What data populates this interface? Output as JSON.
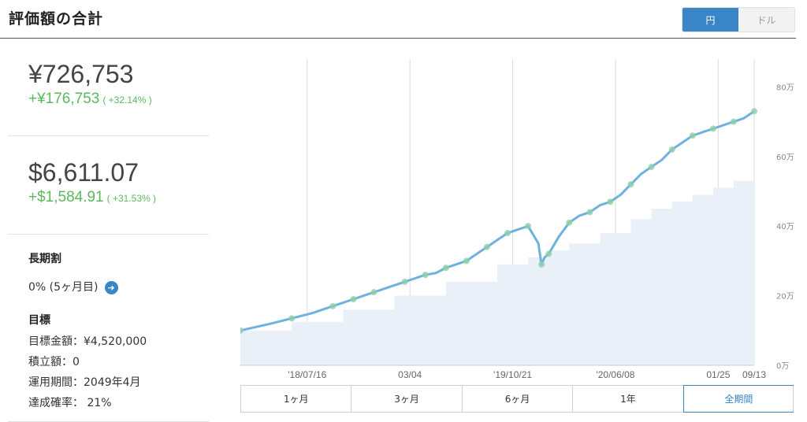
{
  "header": {
    "title": "評価額の合計",
    "currency_yen": "円",
    "currency_usd": "ドル"
  },
  "summary": {
    "jpy_value": "¥726,753",
    "jpy_gain": "+¥176,753",
    "jpy_gain_pct": "( +32.14% )",
    "usd_value": "$6,611.07",
    "usd_gain": "+$1,584.91",
    "usd_gain_pct": "( +31.53% )"
  },
  "long_term": {
    "title": "長期割",
    "value": "0% (5ヶ月目)",
    "icon": "arrow-right-icon"
  },
  "goal": {
    "title": "目標",
    "target_amount": "目標金額：¥4,520,000",
    "contribution": "積立額：0",
    "period": "運用期間：2049年4月",
    "probability": "達成確率：  21%"
  },
  "ranges": [
    "1ヶ月",
    "3ヶ月",
    "6ヶ月",
    "1年",
    "全期間"
  ],
  "active_range": "全期間",
  "colors": {
    "accent": "#3a85c6",
    "gain": "#5cb85c",
    "line": "#6fb1e0",
    "area": "#e9f0f8"
  },
  "chart_data": {
    "type": "area",
    "x_tick_labels": [
      "'18/07/16",
      "03/04",
      "'19/10/21",
      "'20/06/08",
      "01/25",
      "09/13"
    ],
    "y_tick_labels": [
      "0万",
      "20万",
      "40万",
      "60万",
      "80万"
    ],
    "ylim": [
      0,
      88
    ],
    "y_unit": "万円",
    "series": [
      {
        "role": "valuation",
        "type": "line",
        "x": [
          0,
          3,
          5,
          7,
          9,
          10,
          11,
          12,
          13,
          15,
          16,
          17,
          18,
          19,
          20,
          21,
          22,
          23,
          24,
          25,
          26,
          27,
          28,
          29,
          29.3,
          29.6,
          30,
          31,
          32,
          33,
          34,
          35,
          36,
          37,
          38,
          39,
          40,
          41,
          42,
          43,
          44,
          45,
          46,
          47,
          48,
          49,
          50
        ],
        "values": [
          10,
          12,
          13.5,
          15,
          17,
          18,
          19,
          20,
          21,
          23,
          24,
          25,
          26,
          26.5,
          28,
          29,
          30,
          32,
          34,
          36,
          38,
          39,
          40,
          35,
          29,
          31,
          32,
          37,
          41,
          43,
          44,
          46,
          47,
          49,
          52,
          55,
          57,
          59,
          62,
          64,
          66,
          67,
          68,
          69,
          70,
          71,
          73
        ]
      },
      {
        "role": "contribution",
        "type": "area",
        "x": [
          0,
          5,
          10,
          15,
          20,
          25,
          28,
          30,
          32,
          35,
          38,
          40,
          42,
          44,
          46,
          48,
          50
        ],
        "values": [
          10,
          12.5,
          16,
          20,
          24,
          29,
          31,
          33,
          35,
          38,
          42,
          45,
          47,
          49,
          51,
          53,
          55
        ]
      }
    ],
    "x_ticks_at": [
      6.5,
      16.5,
      26.5,
      36.5,
      46.5,
      50
    ],
    "xlim": [
      0,
      50
    ]
  }
}
